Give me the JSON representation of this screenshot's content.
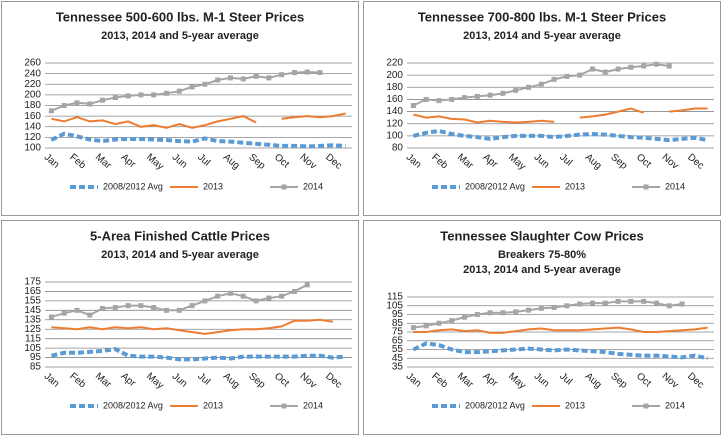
{
  "chart_data": [
    {
      "type": "line",
      "title": "Tennessee 500-600 lbs. M-1 Steer Prices",
      "subtitle": [
        "2013, 2014 and 5-year average"
      ],
      "categories": [
        "Jan",
        null,
        "Feb",
        null,
        "Mar",
        null,
        "Apr",
        null,
        "May",
        null,
        "Jun",
        null,
        "Jul",
        null,
        "Aug",
        null,
        "Sep",
        null,
        "Oct",
        null,
        "Nov",
        null,
        "Dec",
        null
      ],
      "ylim": [
        100,
        260
      ],
      "yticks": [
        100,
        120,
        140,
        160,
        180,
        200,
        220,
        240,
        260
      ],
      "grid": true,
      "legend": "bottom",
      "series": [
        {
          "name": "2008/2012 Avg",
          "color": "#5b9bd5",
          "line_style": "dashed",
          "values": [
            115,
            127,
            122,
            116,
            113,
            116,
            117,
            117,
            116,
            115,
            113,
            112,
            118,
            113,
            112,
            110,
            108,
            106,
            104,
            104,
            103,
            104,
            105,
            104
          ]
        },
        {
          "name": "2013",
          "color": "#ed7d31",
          "line_style": "solid",
          "values": [
            155,
            150,
            158,
            150,
            152,
            145,
            150,
            140,
            143,
            138,
            145,
            138,
            143,
            150,
            155,
            160,
            148,
            null,
            155,
            158,
            160,
            158,
            160,
            165
          ]
        },
        {
          "name": "2014",
          "color": "#a5a5a5",
          "line_style": "markers",
          "values": [
            170,
            180,
            185,
            183,
            190,
            195,
            198,
            200,
            200,
            203,
            207,
            215,
            220,
            228,
            232,
            230,
            235,
            232,
            238,
            242,
            243,
            242,
            null,
            null
          ]
        }
      ]
    },
    {
      "type": "line",
      "title": "Tennessee 700-800 lbs. M-1 Steer Prices",
      "subtitle": [
        "2013, 2014 and 5-year average"
      ],
      "categories": [
        "Jan",
        null,
        "Feb",
        null,
        "Mar",
        null,
        "Apr",
        null,
        "May",
        null,
        "Jun",
        null,
        "Jul",
        null,
        "Aug",
        null,
        "Sep",
        null,
        "Oct",
        null,
        "Nov",
        null,
        "Dec",
        null
      ],
      "ylim": [
        80,
        220
      ],
      "yticks": [
        80,
        100,
        120,
        140,
        160,
        180,
        200,
        220
      ],
      "grid": true,
      "legend": "bottom",
      "series": [
        {
          "name": "2008/2012 Avg",
          "color": "#5b9bd5",
          "line_style": "dashed",
          "values": [
            100,
            105,
            108,
            103,
            100,
            98,
            95,
            98,
            100,
            100,
            100,
            98,
            100,
            102,
            103,
            102,
            100,
            98,
            97,
            95,
            93,
            95,
            97,
            93
          ]
        },
        {
          "name": "2013",
          "color": "#ed7d31",
          "line_style": "solid",
          "values": [
            135,
            130,
            132,
            128,
            127,
            122,
            125,
            123,
            122,
            123,
            125,
            123,
            null,
            130,
            132,
            135,
            140,
            145,
            138,
            null,
            140,
            142,
            145,
            145
          ]
        },
        {
          "name": "2014",
          "color": "#a5a5a5",
          "line_style": "markers",
          "values": [
            150,
            160,
            158,
            160,
            163,
            165,
            167,
            170,
            175,
            180,
            185,
            193,
            198,
            200,
            210,
            205,
            210,
            213,
            215,
            218,
            215,
            null,
            null,
            null
          ]
        }
      ]
    },
    {
      "type": "line",
      "title": "5-Area Finished Cattle Prices",
      "subtitle": [
        "2013, 2014 and 5-year average"
      ],
      "categories": [
        "Jan",
        null,
        "Feb",
        null,
        "Mar",
        null,
        "Apr",
        null,
        "May",
        null,
        "Jun",
        null,
        "Jul",
        null,
        "Aug",
        null,
        "Sep",
        null,
        "Oct",
        null,
        "Nov",
        null,
        "Dec",
        null
      ],
      "ylim": [
        85,
        175
      ],
      "yticks": [
        85,
        95,
        105,
        115,
        125,
        135,
        145,
        155,
        165,
        175
      ],
      "grid": true,
      "legend": "bottom",
      "series": [
        {
          "name": "2008/2012 Avg",
          "color": "#5b9bd5",
          "line_style": "dashed",
          "values": [
            97,
            100,
            100,
            101,
            102,
            104,
            97,
            96,
            96,
            95,
            93,
            93,
            94,
            95,
            94,
            96,
            96,
            96,
            96,
            96,
            97,
            97,
            95,
            96
          ]
        },
        {
          "name": "2013",
          "color": "#ed7d31",
          "line_style": "solid",
          "values": [
            127,
            126,
            125,
            127,
            125,
            127,
            126,
            127,
            125,
            126,
            124,
            122,
            120,
            122,
            124,
            125,
            125,
            126,
            128,
            134,
            134,
            135,
            133,
            null
          ]
        },
        {
          "name": "2014",
          "color": "#a5a5a5",
          "line_style": "markers",
          "values": [
            138,
            142,
            145,
            140,
            147,
            148,
            150,
            150,
            148,
            145,
            145,
            150,
            155,
            160,
            163,
            160,
            155,
            158,
            160,
            165,
            172,
            null,
            null,
            null
          ]
        }
      ]
    },
    {
      "type": "line",
      "title": "Tennessee Slaughter Cow Prices",
      "subtitle": [
        "Breakers 75-80%",
        "2013, 2014 and 5-year average"
      ],
      "categories": [
        "Jan",
        null,
        "Feb",
        null,
        "Mar",
        null,
        "Apr",
        null,
        "May",
        null,
        "Jun",
        null,
        "Jul",
        null,
        "Aug",
        null,
        "Sep",
        null,
        "Oct",
        null,
        "Nov",
        null,
        "Dec",
        null
      ],
      "ylim": [
        35,
        115
      ],
      "yticks": [
        35,
        45,
        55,
        65,
        75,
        85,
        95,
        105,
        115
      ],
      "grid": true,
      "legend": "bottom",
      "series": [
        {
          "name": "2008/2012 Avg",
          "color": "#5b9bd5",
          "line_style": "dashed",
          "values": [
            55,
            62,
            60,
            55,
            52,
            52,
            53,
            54,
            55,
            56,
            55,
            54,
            55,
            54,
            53,
            52,
            50,
            49,
            48,
            48,
            47,
            46,
            48,
            45
          ]
        },
        {
          "name": "2013",
          "color": "#ed7d31",
          "line_style": "solid",
          "values": [
            75,
            75,
            77,
            78,
            76,
            77,
            74,
            74,
            76,
            78,
            79,
            77,
            77,
            77,
            78,
            79,
            80,
            78,
            75,
            75,
            76,
            77,
            78,
            80
          ]
        },
        {
          "name": "2014",
          "color": "#a5a5a5",
          "line_style": "markers",
          "values": [
            80,
            82,
            85,
            88,
            92,
            95,
            97,
            97,
            98,
            100,
            102,
            103,
            105,
            107,
            108,
            108,
            110,
            110,
            110,
            108,
            105,
            107,
            null,
            null
          ]
        }
      ]
    }
  ]
}
